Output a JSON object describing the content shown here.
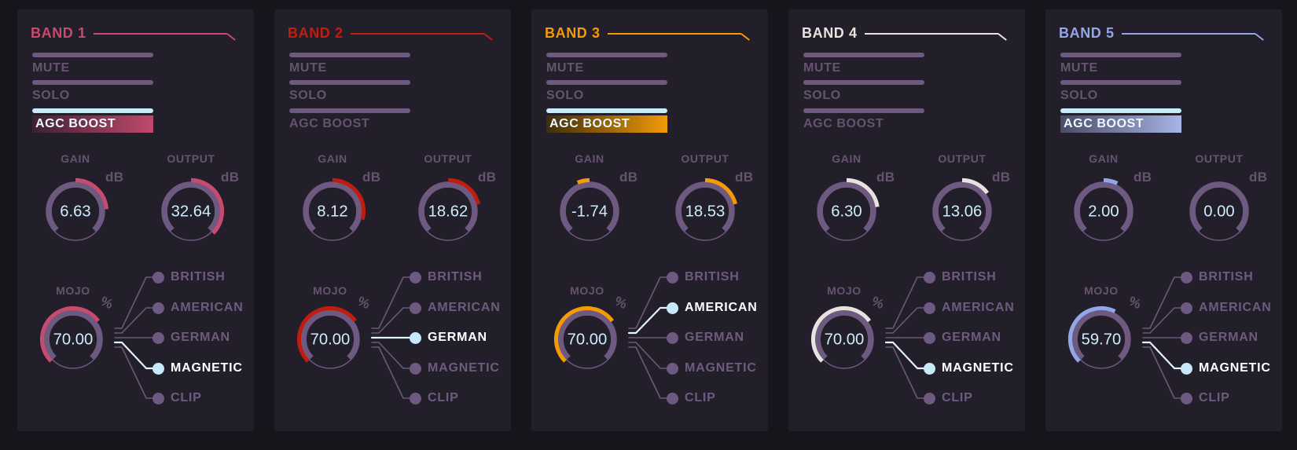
{
  "ui": {
    "toggles": {
      "mute": "MUTE",
      "solo": "SOLO",
      "agc": "AGC BOOST"
    },
    "knobs": {
      "gain_label": "GAIN",
      "output_label": "OUTPUT",
      "mojo_label": "MOJO",
      "db_unit": "dB",
      "percent_unit": "%"
    },
    "options": [
      "BRITISH",
      "AMERICAN",
      "GERMAN",
      "MAGNETIC",
      "CLIP"
    ],
    "colors": {
      "page_bg": "#17141c",
      "panel_bg": "#221f2b",
      "control_purple": "#6e5a80",
      "label_text": "#66536f",
      "value_text": "#cfecfb",
      "selected_cyan": "#c7eafa",
      "selected_label": "#ffffff",
      "agc_active_bar": "#c9ecfa"
    }
  },
  "bands": [
    {
      "title": "BAND 1",
      "accent": "#c84a6c",
      "agc_boost_active": true,
      "agc_gradient_from": "#3c2133",
      "agc_gradient_to": "#bf4a6c",
      "gain_db": "6.63",
      "output_db": "32.64",
      "mojo_percent": "70.00",
      "selected_option": "MAGNETIC",
      "selected_index": 3
    },
    {
      "title": "BAND 2",
      "accent": "#c01d10",
      "agc_boost_active": false,
      "agc_gradient_from": "",
      "agc_gradient_to": "",
      "gain_db": "8.12",
      "output_db": "18.62",
      "mojo_percent": "70.00",
      "selected_option": "GERMAN",
      "selected_index": 2
    },
    {
      "title": "BAND 3",
      "accent": "#f39a05",
      "agc_boost_active": true,
      "agc_gradient_from": "#3f2d0d",
      "agc_gradient_to": "#f09a07",
      "gain_db": "-1.74",
      "output_db": "18.53",
      "mojo_percent": "70.00",
      "selected_option": "AMERICAN",
      "selected_index": 1
    },
    {
      "title": "BAND 4",
      "accent": "#e7e3df",
      "agc_boost_active": false,
      "agc_gradient_from": "",
      "agc_gradient_to": "",
      "gain_db": "6.30",
      "output_db": "13.06",
      "mojo_percent": "70.00",
      "selected_option": "MAGNETIC",
      "selected_index": 3
    },
    {
      "title": "BAND 5",
      "accent": "#93a7e8",
      "agc_boost_active": true,
      "agc_gradient_from": "#4a4c66",
      "agc_gradient_to": "#a7b4e6",
      "gain_db": "2.00",
      "output_db": "0.00",
      "mojo_percent": "59.70",
      "selected_option": "MAGNETIC",
      "selected_index": 3
    }
  ]
}
